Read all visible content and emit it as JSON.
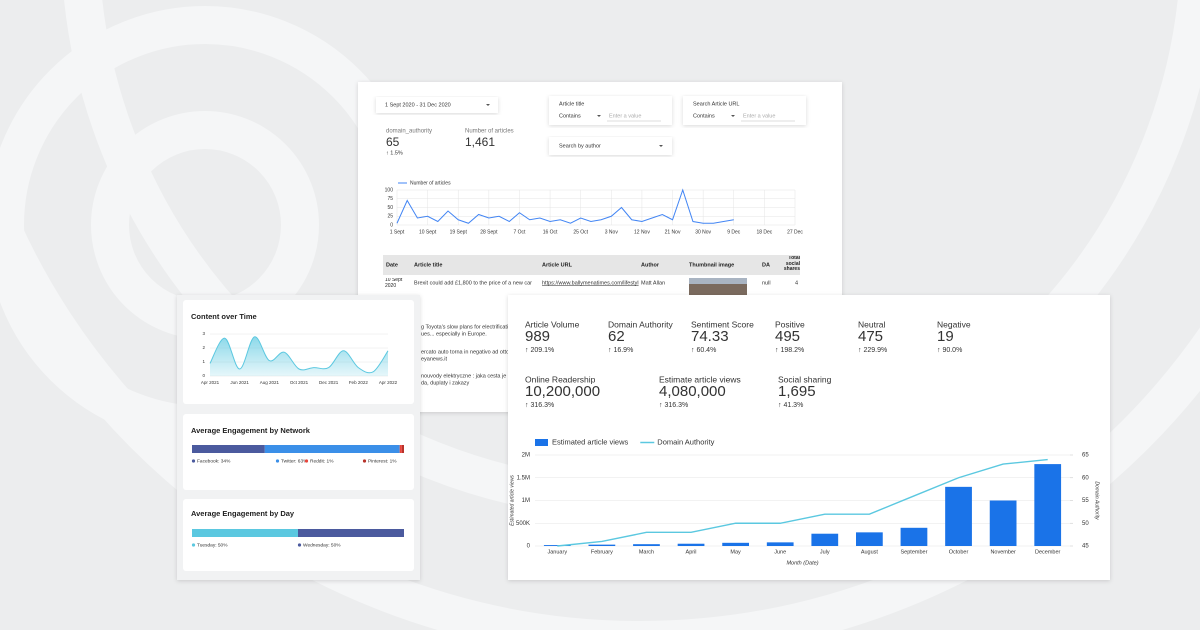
{
  "filters": {
    "date_range": "1 Sept 2020 - 31 Dec 2020",
    "article_title": {
      "label": "Article title",
      "operator": "Contains",
      "placeholder": "Enter a value"
    },
    "article_url": {
      "label": "Search Article URL",
      "operator": "Contains",
      "placeholder": "Enter a value"
    },
    "author": "Search by author"
  },
  "summary": [
    {
      "label": "domain_authority",
      "value": "65",
      "change": "↑ 1.5%"
    },
    {
      "label": "Number of articles",
      "value": "1,461"
    }
  ],
  "table": {
    "columns": [
      "Date",
      "Article title",
      "Article URL",
      "Author",
      "Thumbnail image",
      "DA",
      "Total social shares"
    ],
    "rows": [
      [
        "10 Sept 2020",
        "Brexit could add £1,800 to the price of a new car",
        "https://www.ballymenatimes.com/lifestyl",
        "Matt Allan",
        null,
        "null",
        "4"
      ]
    ],
    "partial_rows": [
      [
        "g Toyota's slow plans for electrification c",
        "ues... especially in Europe."
      ],
      [
        "ercato auto torna in negativo ad ottobre",
        "eyanews.it"
      ],
      [
        "nouvody elektryczne : jaka cesta je przy",
        "da, duplaty i zakazy"
      ]
    ]
  },
  "metrics": [
    {
      "label": "Article Volume",
      "value": "989",
      "change": "↑ 209.1%"
    },
    {
      "label": "Domain Authority",
      "value": "62",
      "change": "↑ 16.9%"
    },
    {
      "label": "Sentiment Score",
      "value": "74.33",
      "change": "↑ 60.4%"
    },
    {
      "label": "Positive",
      "value": "495",
      "change": "↑ 198.2%"
    },
    {
      "label": "Neutral",
      "value": "475",
      "change": "↑ 229.9%"
    },
    {
      "label": "Negative",
      "value": "19",
      "change": "↑ 90.0%"
    },
    {
      "label": "Online Readership",
      "value": "10,200,000",
      "change": "↑ 316.3%"
    },
    {
      "label": "Estimate article views",
      "value": "4,080,000",
      "change": "↑ 316.3%"
    },
    {
      "label": "Social sharing",
      "value": "1,695",
      "change": "↑ 41.3%"
    }
  ],
  "chart_data": [
    {
      "type": "line",
      "series": [
        {
          "name": "Number of articles",
          "color": "#4285f4",
          "x": [
            0,
            3,
            6,
            9,
            12,
            15,
            18,
            21,
            24,
            27,
            30,
            33,
            36,
            39,
            42,
            45,
            48,
            51,
            54,
            57,
            60,
            63,
            66,
            69,
            72,
            75,
            78,
            81,
            84,
            87,
            90,
            93,
            96,
            99
          ],
          "values": [
            5,
            70,
            20,
            25,
            10,
            40,
            15,
            5,
            30,
            20,
            25,
            10,
            35,
            15,
            20,
            10,
            15,
            5,
            20,
            10,
            15,
            25,
            50,
            15,
            10,
            20,
            30,
            15,
            100,
            10,
            5,
            5,
            10,
            15
          ]
        }
      ],
      "xlim": [
        0,
        117
      ],
      "xticks": [
        {
          "value": 0,
          "label": "1 Sept"
        },
        {
          "value": 9,
          "label": "10 Sept"
        },
        {
          "value": 18,
          "label": "19 Sept"
        },
        {
          "value": 27,
          "label": "28 Sept"
        },
        {
          "value": 36,
          "label": "7 Oct"
        },
        {
          "value": 45,
          "label": "16 Oct"
        },
        {
          "value": 54,
          "label": "25 Oct"
        },
        {
          "value": 63,
          "label": "3 Nov"
        },
        {
          "value": 72,
          "label": "12 Nov"
        },
        {
          "value": 81,
          "label": "21 Nov"
        },
        {
          "value": 90,
          "label": "30 Nov"
        },
        {
          "value": 99,
          "label": "9 Dec"
        },
        {
          "value": 108,
          "label": "18 Dec"
        },
        {
          "value": 117,
          "label": "27 Dec"
        }
      ],
      "ylim": [
        0,
        100
      ],
      "yticks": [
        0,
        25,
        50,
        75,
        100
      ],
      "grid": true
    },
    {
      "type": "area",
      "title": "Content over Time",
      "color": "#5bc8e0",
      "categories": [
        "Apr 2021",
        null,
        "Jun 2021",
        null,
        "Aug 2021",
        null,
        "Oct 2021",
        null,
        "Dec 2021",
        null,
        "Feb 2022",
        null,
        "Apr 2022"
      ],
      "values": [
        0.9,
        2.7,
        0.5,
        2.8,
        1.1,
        1.7,
        0.5,
        0.6,
        0.6,
        1.8,
        0.6,
        0.3,
        1.8
      ],
      "ylim": [
        0,
        3
      ],
      "yticks": [
        0,
        1,
        2,
        3
      ],
      "grid": true
    },
    {
      "type": "stacked_bar",
      "title": "Average Engagement by Network",
      "series": [
        {
          "color": "#4b5a9e",
          "values": [
            34
          ],
          "value_labels": [
            "Facebook: 34%"
          ]
        },
        {
          "color": "#3b8fe8",
          "values": [
            63
          ],
          "value_labels": [
            "Twitter: 63%"
          ]
        },
        {
          "color": "#e8453c",
          "values": [
            1
          ],
          "value_labels": [
            "Reddit: 1%"
          ]
        },
        {
          "color": "#b8322a",
          "values": [
            1
          ],
          "value_labels": [
            "Pinterest: 1%"
          ]
        }
      ]
    },
    {
      "type": "stacked_bar",
      "title": "Average Engagement by Day",
      "series": [
        {
          "color": "#5bc8e0",
          "values": [
            50
          ],
          "value_labels": [
            "Tuesday: 50%"
          ]
        },
        {
          "color": "#4b5a9e",
          "values": [
            50
          ],
          "value_labels": [
            "Wednesday: 50%"
          ]
        }
      ]
    },
    {
      "type": "combo",
      "categories": [
        "January",
        "February",
        "March",
        "April",
        "May",
        "June",
        "July",
        "August",
        "September",
        "October",
        "November",
        "December"
      ],
      "series": [
        {
          "name": "Estimated article views",
          "type": "bar",
          "color": "#1a73e8",
          "values": [
            20000,
            30000,
            40000,
            50000,
            70000,
            80000,
            270000,
            300000,
            400000,
            1300000,
            1000000,
            1800000
          ]
        },
        {
          "name": "Domain Authority",
          "type": "line",
          "color": "#5bc8e0",
          "axis": "y2",
          "values": [
            45,
            46,
            48,
            48,
            50,
            50,
            52,
            52,
            56,
            60,
            63,
            64
          ]
        }
      ],
      "ylim": [
        0,
        2000000
      ],
      "yticks": [
        0,
        {
          "value": 500000,
          "label": "500K"
        },
        {
          "value": 1000000,
          "label": "1M"
        },
        {
          "value": 1500000,
          "label": "1.5M"
        },
        {
          "value": 2000000,
          "label": "2M"
        }
      ],
      "y2lim": [
        45,
        65
      ],
      "y2ticks": [
        45,
        50,
        55,
        60,
        65
      ],
      "ylabel": "Estimated article views",
      "y2label": "Domain Authority",
      "xlabel": "Month (Date)",
      "grid": true
    }
  ]
}
